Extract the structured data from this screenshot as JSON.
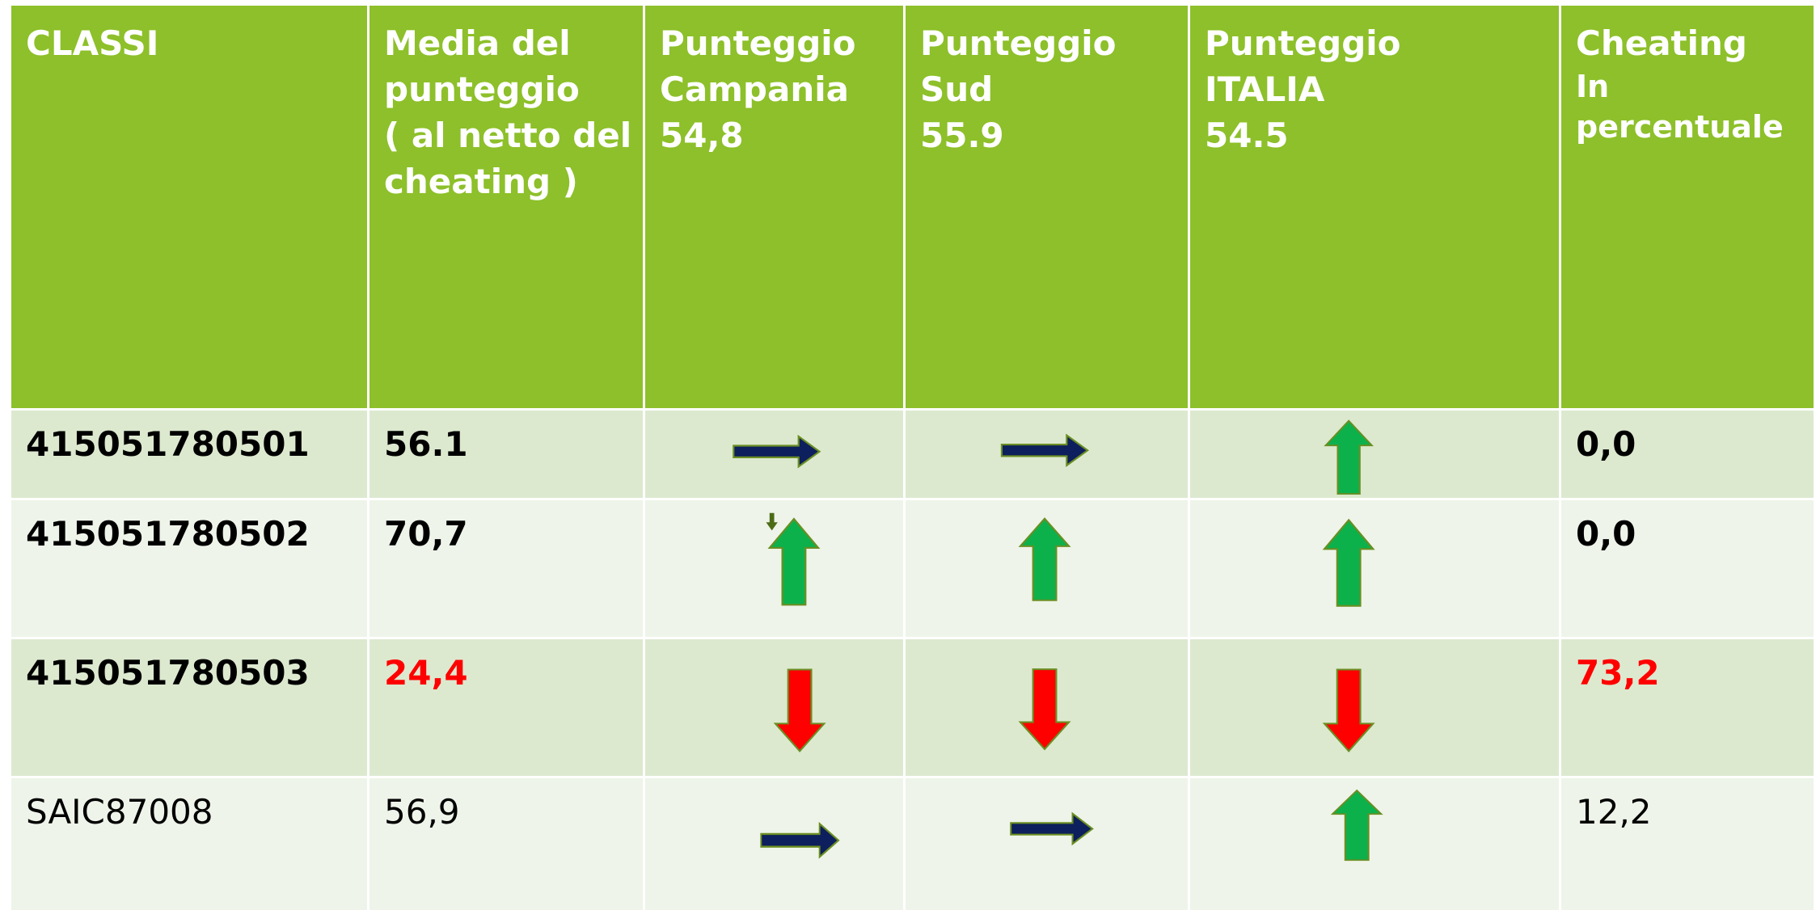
{
  "table": {
    "header": [
      [
        "CLASSI"
      ],
      [
        "Media del",
        "punteggio",
        "( al netto del",
        "cheating )"
      ],
      [
        "Punteggio",
        "Campania",
        "54,8"
      ],
      [
        "Punteggio",
        "Sud",
        "55.9"
      ],
      [
        "Punteggio",
        "ITALIA",
        "54.5"
      ],
      [
        "Cheating",
        "In",
        "percentuale"
      ]
    ],
    "rows": [
      [
        "415051780501",
        "56.1",
        "0,0"
      ],
      [
        "415051780502",
        "70,7",
        "0,0"
      ],
      [
        "415051780503",
        "24,4",
        "73,2"
      ],
      [
        "SAIC87008",
        "56,9",
        "12,2"
      ]
    ]
  }
}
